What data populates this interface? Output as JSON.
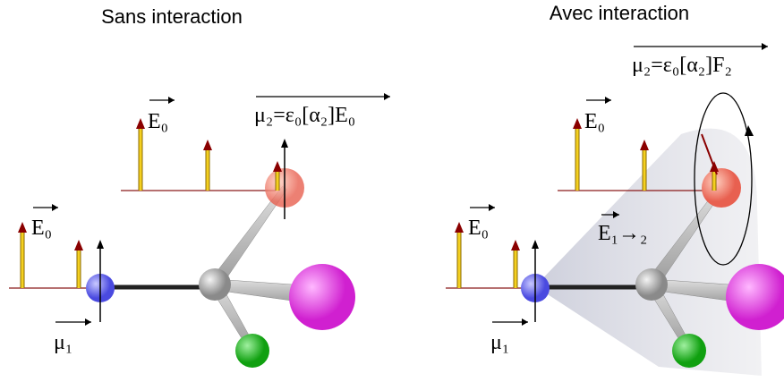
{
  "panels": [
    {
      "title": "Sans interaction",
      "field_label_low": "E₀",
      "field_label_high": "E₀",
      "dipole_formula": "μ₂=ε₀[α₂]E₀",
      "dipole_label": "μ₁"
    },
    {
      "title": "Avec interaction",
      "field_label_low": "E₀",
      "field_label_high": "E₀",
      "interaction_label": "E₁→₂",
      "dipole_formula": "μ₂=ε₀[α₂]F₂",
      "dipole_label": "μ₁"
    }
  ]
}
